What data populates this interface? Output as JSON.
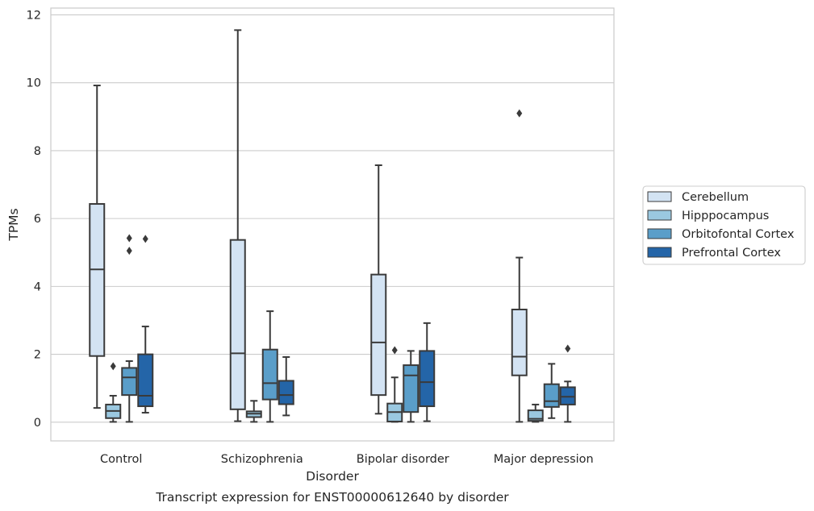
{
  "chart_data": {
    "type": "box",
    "caption": "Transcript expression for ENST00000612640 by disorder",
    "xlabel": "Disorder",
    "ylabel": "TPMs",
    "ylim": [
      -0.55,
      12.2
    ],
    "yticks": [
      0,
      2,
      4,
      6,
      8,
      10,
      12
    ],
    "grid": "horizontal",
    "legend_position": "right",
    "categories": [
      "Control",
      "Schizophrenia",
      "Bipolar disorder",
      "Major depression"
    ],
    "series": [
      {
        "name": "Cerebellum",
        "color": "#d3e3f3",
        "boxes": [
          {
            "whislo": 0.42,
            "q1": 1.95,
            "med": 4.5,
            "q3": 6.43,
            "whishi": 9.92,
            "fliers": []
          },
          {
            "whislo": 0.03,
            "q1": 0.38,
            "med": 2.03,
            "q3": 5.37,
            "whishi": 11.55,
            "fliers": []
          },
          {
            "whislo": 0.25,
            "q1": 0.8,
            "med": 2.35,
            "q3": 4.35,
            "whishi": 7.57,
            "fliers": []
          },
          {
            "whislo": 0.01,
            "q1": 1.38,
            "med": 1.93,
            "q3": 3.32,
            "whishi": 4.85,
            "fliers": [
              9.1
            ]
          }
        ]
      },
      {
        "name": "Hipppocampus",
        "color": "#9ac8e0",
        "boxes": [
          {
            "whislo": 0.01,
            "q1": 0.12,
            "med": 0.33,
            "q3": 0.52,
            "whishi": 0.78,
            "fliers": [
              1.65
            ]
          },
          {
            "whislo": 0.01,
            "q1": 0.15,
            "med": 0.25,
            "q3": 0.32,
            "whishi": 0.63,
            "fliers": []
          },
          {
            "whislo": 0.01,
            "q1": 0.02,
            "med": 0.3,
            "q3": 0.55,
            "whishi": 1.32,
            "fliers": [
              2.12
            ]
          },
          {
            "whislo": 0.01,
            "q1": 0.04,
            "med": 0.1,
            "q3": 0.35,
            "whishi": 0.52,
            "fliers": []
          }
        ]
      },
      {
        "name": "Orbitofontal Cortex",
        "color": "#5a9ec9",
        "boxes": [
          {
            "whislo": 0.01,
            "q1": 0.8,
            "med": 1.32,
            "q3": 1.6,
            "whishi": 1.8,
            "fliers": [
              5.05,
              5.42
            ]
          },
          {
            "whislo": 0.01,
            "q1": 0.67,
            "med": 1.15,
            "q3": 2.14,
            "whishi": 3.27,
            "fliers": []
          },
          {
            "whislo": 0.01,
            "q1": 0.3,
            "med": 1.38,
            "q3": 1.68,
            "whishi": 2.1,
            "fliers": []
          },
          {
            "whislo": 0.12,
            "q1": 0.45,
            "med": 0.62,
            "q3": 1.12,
            "whishi": 1.72,
            "fliers": []
          }
        ]
      },
      {
        "name": "Prefrontal Cortex",
        "color": "#2465a8",
        "boxes": [
          {
            "whislo": 0.28,
            "q1": 0.47,
            "med": 0.78,
            "q3": 2.0,
            "whishi": 2.82,
            "fliers": [
              5.4
            ]
          },
          {
            "whislo": 0.2,
            "q1": 0.53,
            "med": 0.8,
            "q3": 1.22,
            "whishi": 1.92,
            "fliers": []
          },
          {
            "whislo": 0.03,
            "q1": 0.47,
            "med": 1.18,
            "q3": 2.1,
            "whishi": 2.92,
            "fliers": []
          },
          {
            "whislo": 0.01,
            "q1": 0.52,
            "med": 0.75,
            "q3": 1.03,
            "whishi": 1.2,
            "fliers": [
              2.17
            ]
          }
        ]
      }
    ]
  }
}
